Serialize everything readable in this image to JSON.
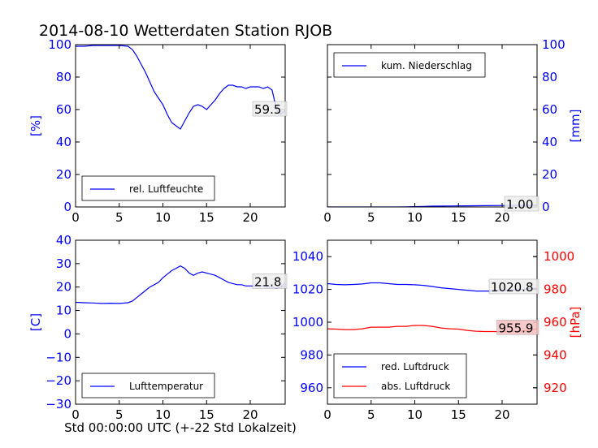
{
  "title": "2014-08-10 Wetterdaten Station RJOB",
  "xlabel": "Std 00:00:00 UTC (+-22 Std Lokalzeit)",
  "colors": {
    "blue": "#0000ff",
    "red": "#ff0000",
    "axis": "#000000",
    "annot_bg": "#eeeeee",
    "annot_bg_red": "#f4c0c0"
  },
  "chart_data": [
    {
      "type": "line",
      "ylabel": "[%]",
      "ylabel_color": "blue",
      "xlim": [
        0,
        24
      ],
      "ylim": [
        0,
        100
      ],
      "xticks": [
        0,
        5,
        10,
        15,
        20
      ],
      "yticks": [
        0,
        20,
        40,
        60,
        80,
        100
      ],
      "ytick_color": "blue",
      "legend": {
        "placement": "bottom-left",
        "entries": [
          {
            "label": "rel. Luftfeuchte",
            "color": "blue"
          }
        ]
      },
      "annotation": "59.5",
      "series": [
        {
          "name": "rel. Luftfeuchte",
          "color": "blue",
          "x": [
            0,
            1,
            2,
            3,
            4,
            5,
            6,
            6.5,
            7,
            7.5,
            8,
            8.5,
            9,
            9.5,
            10,
            10.5,
            11,
            11.5,
            12,
            12.5,
            13,
            13.5,
            14,
            14.5,
            15,
            15.5,
            16,
            16.5,
            17,
            17.5,
            18,
            18.5,
            19,
            19.5,
            20,
            20.5,
            21,
            21.5,
            22,
            22.5,
            23,
            23.5,
            24
          ],
          "y": [
            99,
            99,
            99.5,
            99.5,
            99.5,
            99.5,
            99,
            97,
            93,
            88,
            83,
            77,
            71,
            67,
            63,
            57,
            52,
            50,
            48,
            53,
            58,
            62,
            63,
            62,
            60,
            63,
            66,
            70,
            73,
            75,
            75,
            74,
            74,
            73,
            74,
            74,
            74,
            73,
            74,
            72,
            60,
            57,
            59.5
          ]
        }
      ]
    },
    {
      "type": "line",
      "ylabel": "[mm]",
      "ylabel_color": "blue",
      "y_axis_side": "right",
      "xlim": [
        0,
        24
      ],
      "ylim": [
        0,
        100
      ],
      "xticks": [
        0,
        5,
        10,
        15,
        20
      ],
      "yticks": [
        0,
        20,
        40,
        60,
        80,
        100
      ],
      "ytick_color": "blue",
      "legend": {
        "placement": "top-left",
        "entries": [
          {
            "label": "kum. Niederschlag",
            "color": "blue"
          }
        ]
      },
      "annotation": "1.00",
      "series": [
        {
          "name": "kum. Niederschlag",
          "color": "blue",
          "x": [
            0,
            8,
            9,
            10,
            11,
            12,
            14,
            16,
            18,
            20,
            22,
            23,
            24
          ],
          "y": [
            0,
            0,
            0.1,
            0.2,
            0.3,
            0.5,
            0.6,
            0.7,
            0.8,
            0.9,
            0.95,
            1.0,
            1.0
          ]
        }
      ]
    },
    {
      "type": "line",
      "ylabel": "[C]",
      "ylabel_color": "blue",
      "xlim": [
        0,
        24
      ],
      "ylim": [
        -30,
        40
      ],
      "xticks": [
        0,
        5,
        10,
        15,
        20
      ],
      "yticks": [
        -30,
        -20,
        -10,
        0,
        10,
        20,
        30,
        40
      ],
      "ytick_color": "blue",
      "legend": {
        "placement": "bottom-left",
        "entries": [
          {
            "label": "Lufttemperatur",
            "color": "blue"
          }
        ]
      },
      "annotation": "21.8",
      "series": [
        {
          "name": "Lufttemperatur",
          "color": "blue",
          "x": [
            0,
            1,
            2,
            3,
            4,
            5,
            6,
            6.5,
            7,
            7.5,
            8,
            8.5,
            9,
            9.5,
            10,
            10.5,
            11,
            11.5,
            12,
            12.5,
            13,
            13.5,
            14,
            14.5,
            15,
            15.5,
            16,
            16.5,
            17,
            17.5,
            18,
            18.5,
            19,
            19.5,
            20,
            20.5,
            21,
            21.5,
            22,
            22.5,
            23,
            23.5,
            24
          ],
          "y": [
            13.5,
            13.3,
            13.2,
            13.0,
            13.1,
            13.0,
            13.3,
            14.0,
            15.5,
            17,
            18.5,
            20,
            21,
            22,
            24,
            25.5,
            27,
            28,
            29,
            28,
            26,
            25,
            26,
            26.5,
            26,
            25.5,
            25,
            24,
            23,
            22,
            21.5,
            21,
            21,
            20.5,
            20.5,
            20.5,
            20.5,
            20.5,
            20,
            20,
            19.5,
            20,
            21.8
          ]
        }
      ]
    },
    {
      "type": "line",
      "ylabel": "[hPa]",
      "ylabel_color": "red",
      "y_axis_side": "both",
      "xlim": [
        0,
        24
      ],
      "ylim": [
        950,
        1050
      ],
      "xticks": [
        0,
        5,
        10,
        15,
        20
      ],
      "yticks": [
        960,
        980,
        1000,
        1020,
        1040
      ],
      "ytick_color": "blue",
      "ylim_right": [
        910,
        1010
      ],
      "yticks_right": [
        920,
        940,
        960,
        980,
        1000
      ],
      "ytick_color_right": "red",
      "legend": {
        "placement": "bottom-left",
        "entries": [
          {
            "label": "red. Luftdruck",
            "color": "blue"
          },
          {
            "label": "abs. Luftdruck",
            "color": "red"
          }
        ]
      },
      "annotations": [
        "1020.8",
        "955.9"
      ],
      "series": [
        {
          "name": "red. Luftdruck",
          "color": "blue",
          "axis": "left",
          "x": [
            0,
            1,
            2,
            3,
            4,
            5,
            6,
            7,
            8,
            9,
            10,
            11,
            12,
            13,
            14,
            15,
            16,
            17,
            18,
            19,
            20,
            21,
            22,
            23,
            24
          ],
          "y": [
            1023.5,
            1023,
            1022.8,
            1023,
            1023.3,
            1024,
            1024,
            1023.5,
            1023,
            1023,
            1022.8,
            1022.5,
            1021.8,
            1021,
            1020.5,
            1020,
            1019.5,
            1019,
            1019,
            1019,
            1019.5,
            1019.5,
            1019.8,
            1020.3,
            1020.8
          ]
        },
        {
          "name": "abs. Luftdruck",
          "color": "red",
          "axis": "right",
          "x": [
            0,
            1,
            2,
            3,
            4,
            5,
            6,
            7,
            8,
            9,
            10,
            11,
            12,
            13,
            14,
            15,
            16,
            17,
            18,
            19,
            20,
            21,
            22,
            23,
            24
          ],
          "y": [
            956,
            955.8,
            955.5,
            955.5,
            956,
            957,
            957,
            957,
            957.5,
            957.5,
            958,
            958,
            957.5,
            956.5,
            956,
            955.8,
            955,
            954.5,
            954.3,
            954.3,
            954.2,
            954.3,
            954.5,
            955,
            955.9
          ]
        }
      ]
    }
  ]
}
